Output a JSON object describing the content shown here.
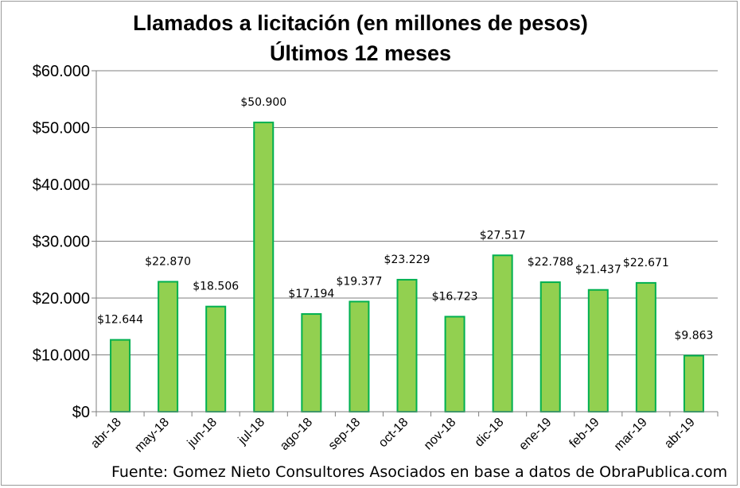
{
  "chart_data": {
    "type": "bar",
    "title": "Llamados a licitación (en millones de pesos)",
    "subtitle": "Últimos 12 meses",
    "categories": [
      "abr-18",
      "may-18",
      "jun-18",
      "jul-18",
      "ago-18",
      "sep-18",
      "oct-18",
      "nov-18",
      "dic-18",
      "ene-19",
      "feb-19",
      "mar-19",
      "abr-19"
    ],
    "values": [
      12644,
      22870,
      18506,
      50900,
      17194,
      19377,
      23229,
      16723,
      27517,
      22788,
      21437,
      22671,
      9863
    ],
    "data_labels": [
      "$12.644",
      "$22.870",
      "$18.506",
      "$50.900",
      "$17.194",
      "$19.377",
      "$23.229",
      "$16.723",
      "$27.517",
      "$22.788",
      "$21.437",
      "$22.671",
      "$9.863"
    ],
    "y_ticks": [
      0,
      10000,
      20000,
      30000,
      40000,
      50000,
      60000
    ],
    "y_tick_labels": [
      "$0",
      "$10.000",
      "$20.000",
      "$30.000",
      "$40.000",
      "$50.000",
      "$60.000"
    ],
    "ylim": [
      0,
      60000
    ],
    "xlabel": "",
    "ylabel": "",
    "grid": true,
    "legend": "none",
    "colors": {
      "bar_fill": "#92d050",
      "bar_border": "#00b050",
      "grid": "#7f7f7f",
      "axis": "#7f7f7f"
    }
  },
  "source_note": "Fuente: Gomez Nieto Consultores Asociados en base a datos de ObraPublica.com"
}
